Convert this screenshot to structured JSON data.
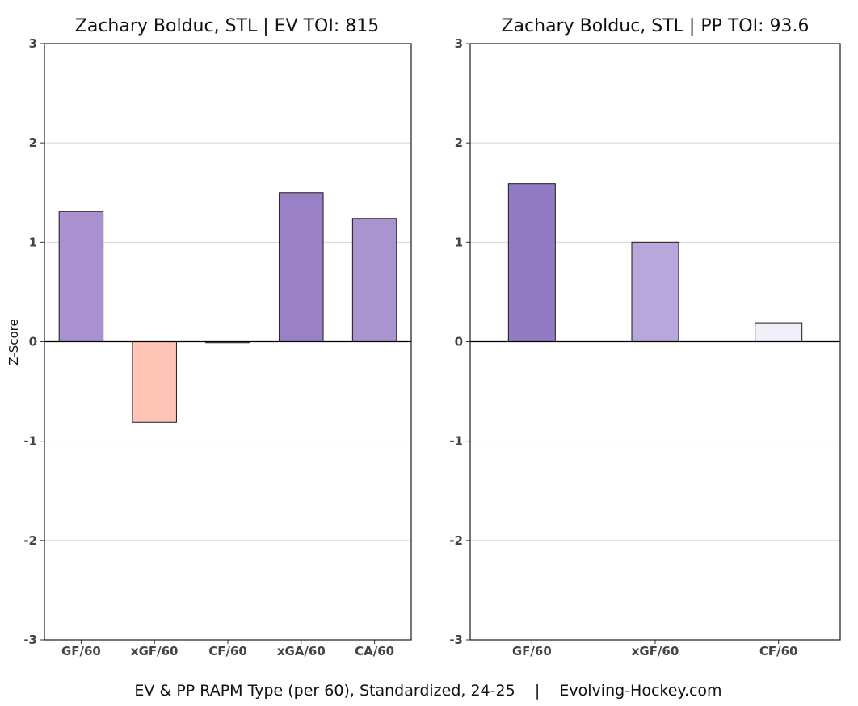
{
  "caption": "EV & PP RAPM Type (per 60), Standardized, 24-25    |    Evolving-Hockey.com",
  "y_axis_title": "Z-Score",
  "chart_data": [
    {
      "type": "bar",
      "title": "Zachary Bolduc, STL  |  EV TOI: 815",
      "xlabel": "",
      "ylabel": "Z-Score",
      "ylim": [
        -3,
        3
      ],
      "yticks": [
        3,
        2,
        1,
        0,
        -1,
        -2,
        -3
      ],
      "grid": true,
      "categories": [
        "GF/60",
        "xGF/60",
        "CF/60",
        "xGA/60",
        "CA/60"
      ],
      "values": [
        1.31,
        -0.81,
        -0.01,
        1.5,
        1.24
      ],
      "colors": [
        "#a891ce",
        "#fec4b6",
        "#f3f0f9",
        "#9a80c5",
        "#a994d0"
      ]
    },
    {
      "type": "bar",
      "title": "Zachary Bolduc, STL  |  PP TOI: 93.6",
      "xlabel": "",
      "ylabel": "",
      "ylim": [
        -3,
        3
      ],
      "yticks": [
        3,
        2,
        1,
        0,
        -1,
        -2,
        -3
      ],
      "grid": true,
      "categories": [
        "GF/60",
        "xGF/60",
        "CF/60"
      ],
      "values": [
        1.59,
        1.0,
        0.19
      ],
      "colors": [
        "#927bc2",
        "#b8a7da",
        "#f1eff8"
      ]
    }
  ]
}
